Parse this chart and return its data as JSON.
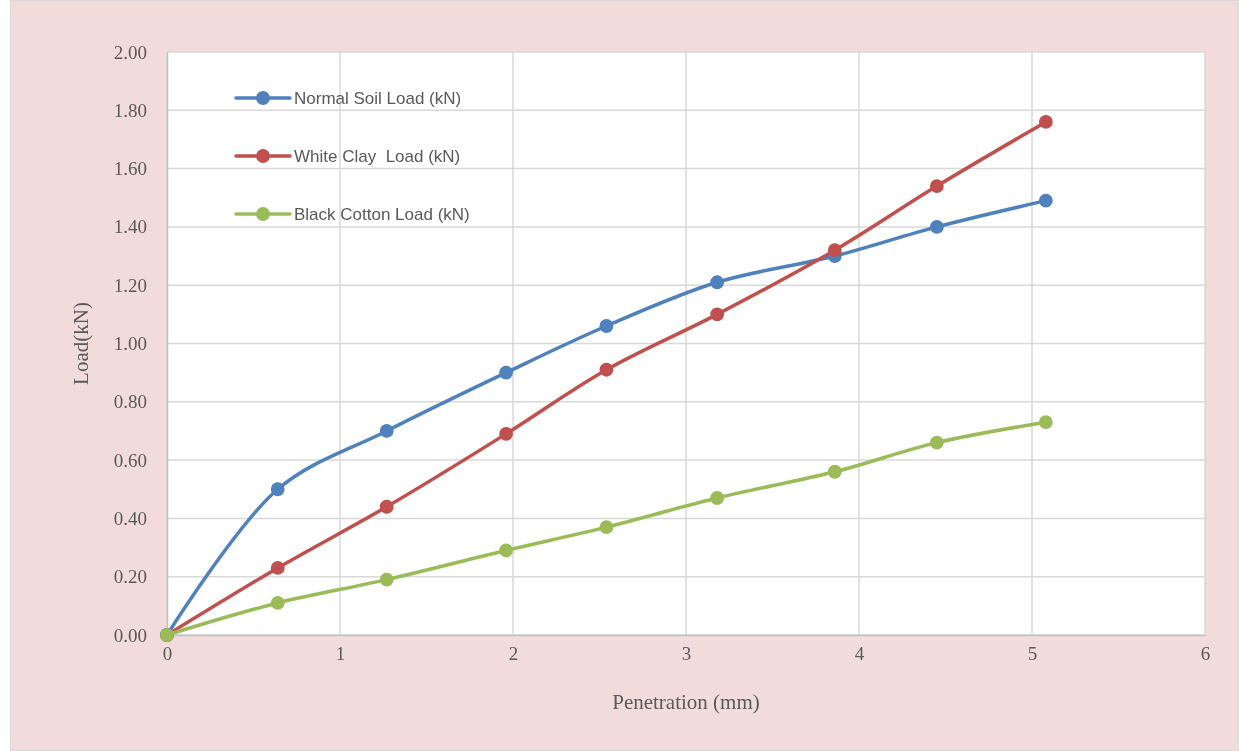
{
  "chart_data": {
    "type": "line",
    "xlabel": "Penetration (mm)",
    "ylabel": "Load(kN)",
    "x": [
      0,
      0.64,
      1.27,
      1.96,
      2.54,
      3.18,
      3.86,
      4.45,
      5.08
    ],
    "series": [
      {
        "name": "Normal Soil Load (kN)",
        "color": "#4f81bd",
        "values": [
          0,
          0.5,
          0.7,
          0.9,
          1.06,
          1.21,
          1.3,
          1.4,
          1.49
        ]
      },
      {
        "name": "White Clay  Load (kN)",
        "color": "#c0504d",
        "values": [
          0,
          0.23,
          0.44,
          0.69,
          0.91,
          1.1,
          1.32,
          1.54,
          1.76
        ]
      },
      {
        "name": "Black Cotton Load (kN)",
        "color": "#9bbb59",
        "values": [
          0,
          0.11,
          0.19,
          0.29,
          0.37,
          0.47,
          0.56,
          0.66,
          0.73
        ]
      }
    ],
    "xlim": [
      0,
      6
    ],
    "xticks": [
      0,
      1,
      2,
      3,
      4,
      5,
      6
    ],
    "ylim": [
      0,
      2
    ],
    "yticks": [
      {
        "value": 0,
        "label": "0.00"
      },
      {
        "value": 0.2,
        "label": "0.20"
      },
      {
        "value": 0.4,
        "label": "0.40"
      },
      {
        "value": 0.6,
        "label": "0.60"
      },
      {
        "value": 0.8,
        "label": "0.80"
      },
      {
        "value": 1,
        "label": "1.00"
      },
      {
        "value": 1.2,
        "label": "1.20"
      },
      {
        "value": 1.4,
        "label": "1.40"
      },
      {
        "value": 1.6,
        "label": "1.60"
      },
      {
        "value": 1.8,
        "label": "1.80"
      },
      {
        "value": 2,
        "label": "2.00"
      }
    ],
    "grid": true,
    "legend": "top left",
    "marker": "circle",
    "line_style": "solid"
  }
}
